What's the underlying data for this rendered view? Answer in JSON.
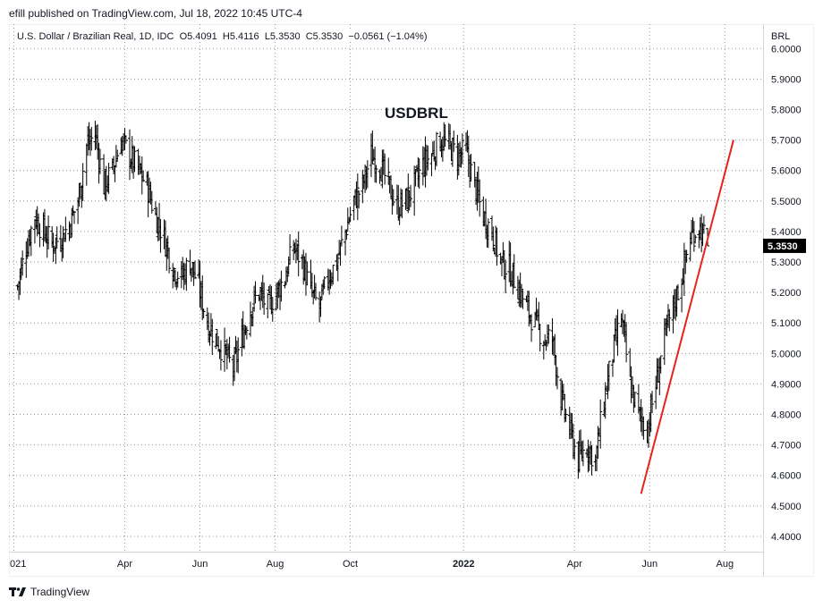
{
  "header": {
    "attribution": "efill published on TradingView.com, Jul 18, 2022 10:45 UTC-4"
  },
  "legend": {
    "symbol": "U.S. Dollar / Brazilian Real, 1D, IDC",
    "open": "O5.4091",
    "high": "H5.4116",
    "low": "L5.3530",
    "close": "C5.3530",
    "change": "−0.0561 (−1.04%)"
  },
  "footer": {
    "brand": "TradingView",
    "logo_icon": "tradingview-logo-icon"
  },
  "colors": {
    "bars": "#000000",
    "trendline": "#e5241b",
    "grid": "#9598a1",
    "price_label_bg": "#000000",
    "price_label_text": "#ffffff"
  },
  "chart_data": {
    "type": "ohlc",
    "title": "USDBRL",
    "currency_label": "BRL",
    "y_ticks": [
      "4.4000",
      "4.5000",
      "4.6000",
      "4.7000",
      "4.8000",
      "4.9000",
      "5.0000",
      "5.1000",
      "5.2000",
      "5.3000",
      "5.4000",
      "5.5000",
      "5.6000",
      "5.7000",
      "5.8000",
      "5.9000",
      "6.0000"
    ],
    "ylim": [
      4.35,
      6.08
    ],
    "x_ticks": [
      "021",
      "Apr",
      "Jun",
      "Aug",
      "Oct",
      "2022",
      "Apr",
      "Jun",
      "Aug"
    ],
    "last_price": "5.3530",
    "grid": true,
    "series_closes": [
      [
        "2021-01-04",
        5.22
      ],
      [
        "2021-01-11",
        5.35
      ],
      [
        "2021-01-18",
        5.45
      ],
      [
        "2021-01-25",
        5.4
      ],
      [
        "2021-02-01",
        5.36
      ],
      [
        "2021-02-08",
        5.38
      ],
      [
        "2021-02-15",
        5.42
      ],
      [
        "2021-02-22",
        5.5
      ],
      [
        "2021-03-01",
        5.68
      ],
      [
        "2021-03-08",
        5.72
      ],
      [
        "2021-03-15",
        5.55
      ],
      [
        "2021-03-22",
        5.6
      ],
      [
        "2021-03-29",
        5.7
      ],
      [
        "2021-04-05",
        5.65
      ],
      [
        "2021-04-12",
        5.6
      ],
      [
        "2021-04-19",
        5.55
      ],
      [
        "2021-04-26",
        5.45
      ],
      [
        "2021-05-03",
        5.38
      ],
      [
        "2021-05-10",
        5.28
      ],
      [
        "2021-05-17",
        5.25
      ],
      [
        "2021-05-24",
        5.3
      ],
      [
        "2021-05-31",
        5.22
      ],
      [
        "2021-06-07",
        5.1
      ],
      [
        "2021-06-14",
        5.05
      ],
      [
        "2021-06-21",
        5.0
      ],
      [
        "2021-06-28",
        4.95
      ],
      [
        "2021-07-05",
        5.05
      ],
      [
        "2021-07-12",
        5.15
      ],
      [
        "2021-07-19",
        5.2
      ],
      [
        "2021-07-26",
        5.15
      ],
      [
        "2021-08-02",
        5.2
      ],
      [
        "2021-08-09",
        5.25
      ],
      [
        "2021-08-16",
        5.35
      ],
      [
        "2021-08-23",
        5.3
      ],
      [
        "2021-08-30",
        5.2
      ],
      [
        "2021-09-06",
        5.15
      ],
      [
        "2021-09-13",
        5.25
      ],
      [
        "2021-09-20",
        5.3
      ],
      [
        "2021-09-27",
        5.4
      ],
      [
        "2021-10-04",
        5.5
      ],
      [
        "2021-10-11",
        5.55
      ],
      [
        "2021-10-18",
        5.65
      ],
      [
        "2021-10-25",
        5.62
      ],
      [
        "2021-11-01",
        5.55
      ],
      [
        "2021-11-08",
        5.48
      ],
      [
        "2021-11-15",
        5.5
      ],
      [
        "2021-11-22",
        5.55
      ],
      [
        "2021-11-29",
        5.62
      ],
      [
        "2021-12-06",
        5.65
      ],
      [
        "2021-12-13",
        5.7
      ],
      [
        "2021-12-20",
        5.68
      ],
      [
        "2021-12-27",
        5.65
      ],
      [
        "2022-01-03",
        5.66
      ],
      [
        "2022-01-10",
        5.55
      ],
      [
        "2022-01-17",
        5.45
      ],
      [
        "2022-01-24",
        5.4
      ],
      [
        "2022-01-31",
        5.3
      ],
      [
        "2022-02-07",
        5.28
      ],
      [
        "2022-02-14",
        5.22
      ],
      [
        "2022-02-21",
        5.15
      ],
      [
        "2022-02-28",
        5.1
      ],
      [
        "2022-03-07",
        5.05
      ],
      [
        "2022-03-14",
        5.05
      ],
      [
        "2022-03-21",
        4.85
      ],
      [
        "2022-03-28",
        4.75
      ],
      [
        "2022-04-04",
        4.65
      ],
      [
        "2022-04-11",
        4.7
      ],
      [
        "2022-04-18",
        4.65
      ],
      [
        "2022-04-25",
        4.85
      ],
      [
        "2022-05-02",
        5.0
      ],
      [
        "2022-05-09",
        5.12
      ],
      [
        "2022-05-16",
        4.9
      ],
      [
        "2022-05-23",
        4.8
      ],
      [
        "2022-05-30",
        4.75
      ],
      [
        "2022-06-06",
        4.9
      ],
      [
        "2022-06-13",
        5.05
      ],
      [
        "2022-06-20",
        5.15
      ],
      [
        "2022-06-27",
        5.25
      ],
      [
        "2022-07-04",
        5.38
      ],
      [
        "2022-07-11",
        5.42
      ],
      [
        "2022-07-18",
        5.353
      ]
    ],
    "trendline": [
      [
        "2022-05-25",
        4.54
      ],
      [
        "2022-08-08",
        5.7
      ]
    ]
  }
}
